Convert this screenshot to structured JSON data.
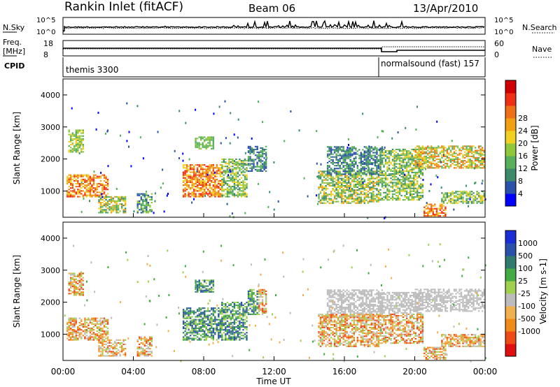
{
  "header": {
    "station": "Rankin Inlet (fitACF)",
    "beam": "Beam 06",
    "date": "13/Apr/2010"
  },
  "panels": {
    "nsky_label": "N.Sky",
    "nsearch_label": "N.Search",
    "noise_ticks_top": "10^5",
    "noise_ticks_bottom": "10^0",
    "freq_label_1": "Freq.",
    "freq_label_2": "[MHz]",
    "freq_ticks": [
      "18",
      "8"
    ],
    "nave_label": "Nave",
    "nave_ticks": [
      "60",
      "0"
    ],
    "cpid_label": "CPID",
    "cpid_1": "themis 3300",
    "cpid_2": "normalsound (fast) 157"
  },
  "colors": {
    "power": [
      "#0000ff",
      "#2a52a8",
      "#3d8a6a",
      "#58b05a",
      "#90c83c",
      "#f0d020",
      "#f0a010",
      "#f07018",
      "#f03014",
      "#d00000"
    ],
    "velocity": [
      "#e01010",
      "#f04a18",
      "#f08a18",
      "#f0b050",
      "#bcbcbc",
      "#a0d050",
      "#44aa44",
      "#307a70",
      "#2a52a8",
      "#1a2ed8"
    ]
  },
  "chart_data": [
    {
      "type": "heatmap",
      "name": "power",
      "ylabel": "Slant Range [km]",
      "yticks": [
        "1000",
        "2000",
        "3000",
        "4000"
      ],
      "colorbar_label": "Power [dB]",
      "colorbar_ticks": [
        "4",
        "8",
        "12",
        "16",
        "20",
        "24",
        "28"
      ],
      "ylim": [
        180,
        4500
      ],
      "xlim": [
        0,
        24
      ]
    },
    {
      "type": "heatmap",
      "name": "velocity",
      "ylabel": "Slant Range [km]",
      "yticks": [
        "1000",
        "2000",
        "3000",
        "4000"
      ],
      "colorbar_label": "Velocity [m s-1]",
      "colorbar_ticks": [
        "1000",
        "500",
        "100",
        "25",
        "-25",
        "-100",
        "-500",
        "-1000"
      ],
      "ylim": [
        180,
        4500
      ],
      "xlim": [
        0,
        24
      ]
    }
  ],
  "xaxis": {
    "ticks": [
      "00:00",
      "04:00",
      "08:00",
      "12:00",
      "16:00",
      "20:00",
      "00:00"
    ],
    "label": "Time UT"
  }
}
